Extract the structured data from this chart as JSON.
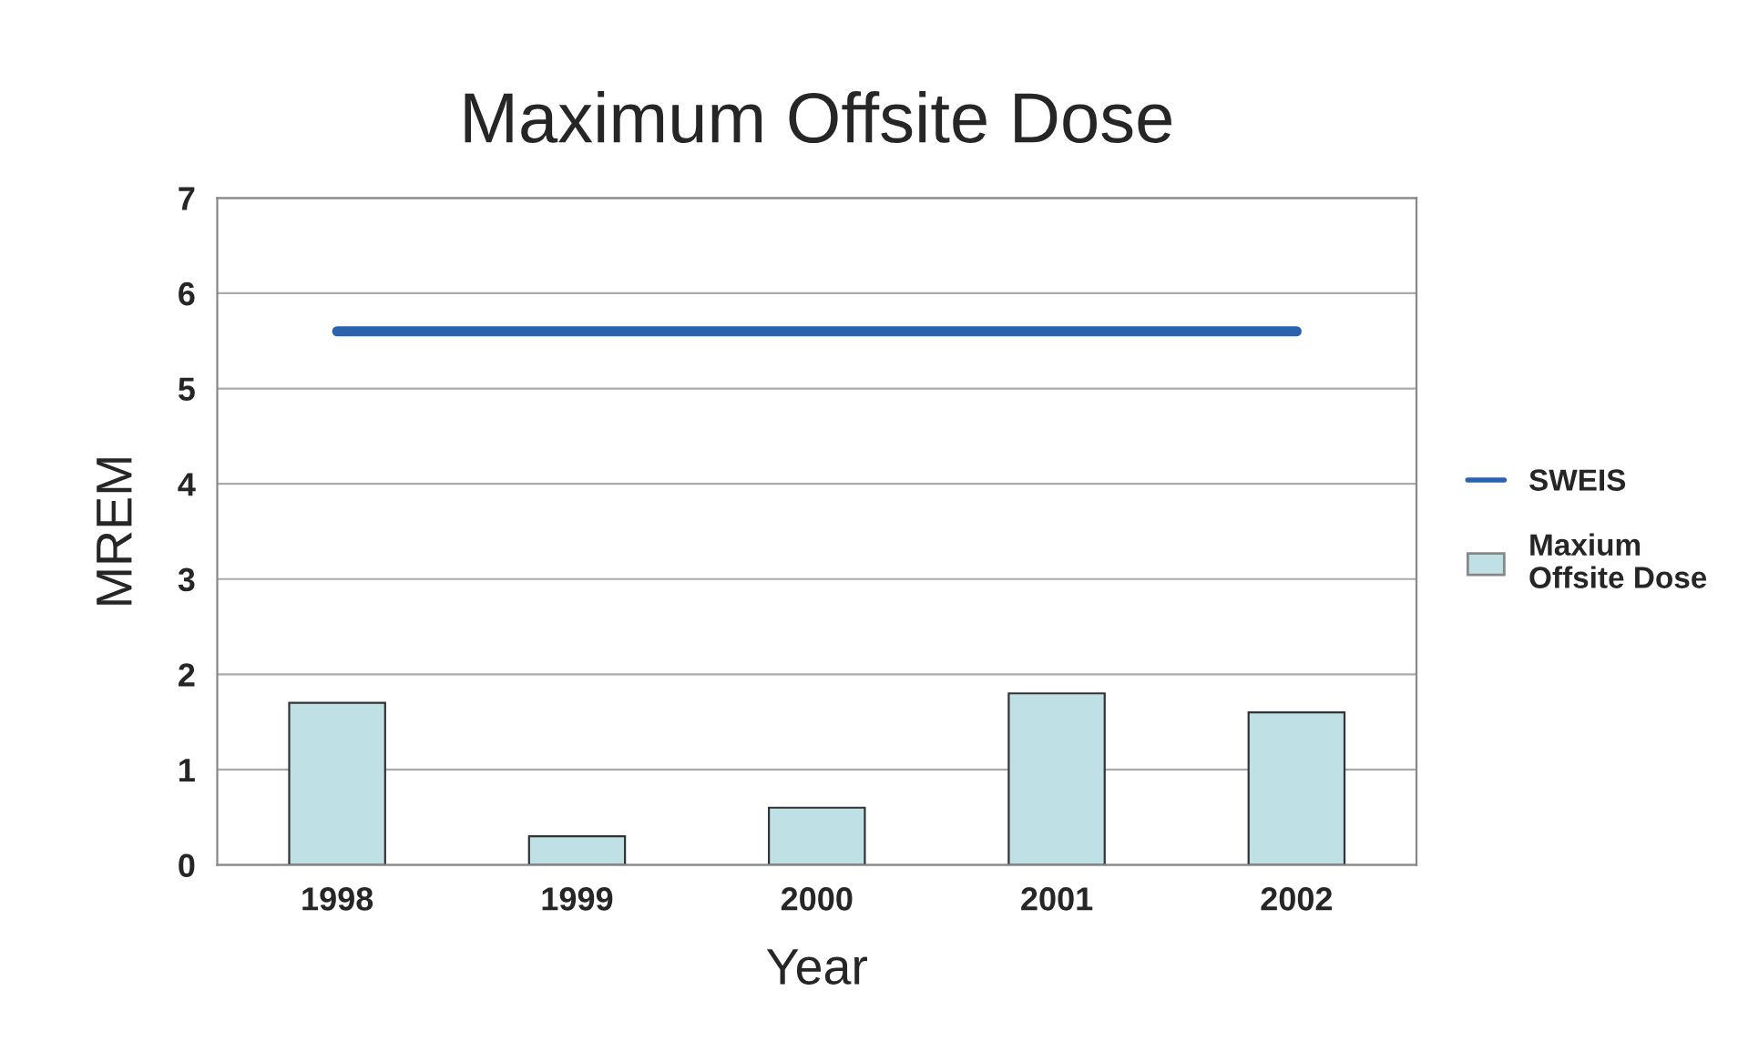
{
  "chart_data": {
    "type": "bar",
    "title": "Maximum Offsite Dose",
    "xlabel": "Year",
    "ylabel": "MREM",
    "categories": [
      "1998",
      "1999",
      "2000",
      "2001",
      "2002"
    ],
    "series": [
      {
        "name": "SWEIS",
        "type": "line",
        "color": "#2a62b0",
        "values": [
          5.6,
          5.6,
          5.6,
          5.6,
          5.6
        ]
      },
      {
        "name": "Maxium\nOffsite Dose",
        "color": "#bfe0e4",
        "values": [
          1.7,
          0.3,
          0.6,
          1.8,
          1.6
        ]
      }
    ],
    "ylim": [
      0,
      7
    ],
    "yticks": [
      0,
      1,
      2,
      3,
      4,
      5,
      6,
      7
    ],
    "grid": "y",
    "legend": "right"
  }
}
